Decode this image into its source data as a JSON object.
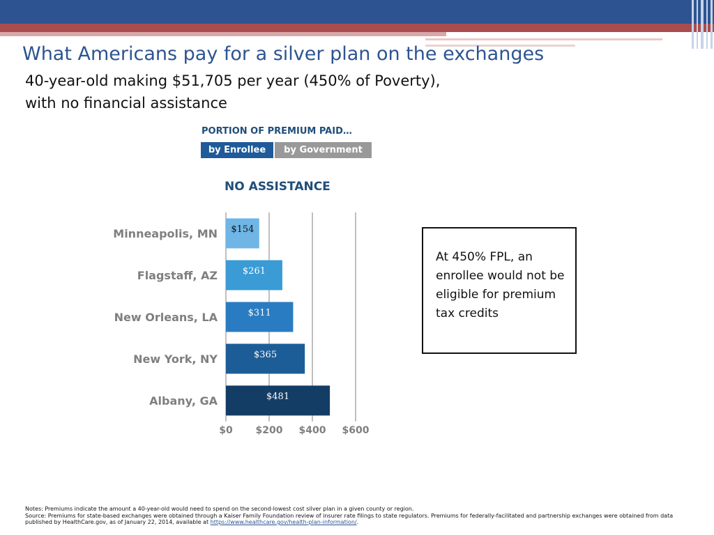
{
  "slide": {
    "title": "What Americans pay for a silver plan on the exchanges",
    "subtitle_line1": "40-year-old making $51,705 per year (450% of Poverty),",
    "subtitle_line2": "with no financial assistance",
    "callout": "At 450% FPL, an enrollee would not be eligible for premium tax credits",
    "colors": {
      "brand_blue": "#2d5491",
      "accent_red": "#a94c4f"
    }
  },
  "legend": {
    "heading": "PORTION OF PREMIUM PAID…",
    "enrollee": "by Enrollee",
    "government": "by Government",
    "enrollee_color": "#1f5a99",
    "government_color": "#999999"
  },
  "chart_data": {
    "type": "bar",
    "orientation": "horizontal",
    "title": "NO ASSISTANCE",
    "categories": [
      "Minneapolis, MN",
      "Flagstaff, AZ",
      "New Orleans, LA",
      "New York, NY",
      "Albany, GA"
    ],
    "values": [
      154,
      261,
      311,
      365,
      481
    ],
    "data_labels": [
      "$154",
      "$261",
      "$311",
      "$365",
      "$481"
    ],
    "bar_colors": [
      "#6fb5e6",
      "#3a9bd5",
      "#2a7cc2",
      "#1d5d97",
      "#143d66"
    ],
    "x_ticks": [
      0,
      200,
      400,
      600
    ],
    "x_tick_labels": [
      "$0",
      "$200",
      "$400",
      "$600"
    ],
    "xlim": [
      0,
      600
    ],
    "grid": true
  },
  "footnote": {
    "notes": "Notes: Premiums indicate the amount a 40-year-old would need to spend on the second-lowest cost silver plan in a given county or region.",
    "source": "Source: Premiums for state-based exchanges were obtained through a Kaiser Family Foundation review of insurer rate filings to state regulators. Premiums for federally-facilitated and partnership exchanges were obtained from data published by HealthCare.gov, as of January 22, 2014, available at",
    "link": "https://www.healthcare.gov/health-plan-information/",
    "end": "."
  }
}
